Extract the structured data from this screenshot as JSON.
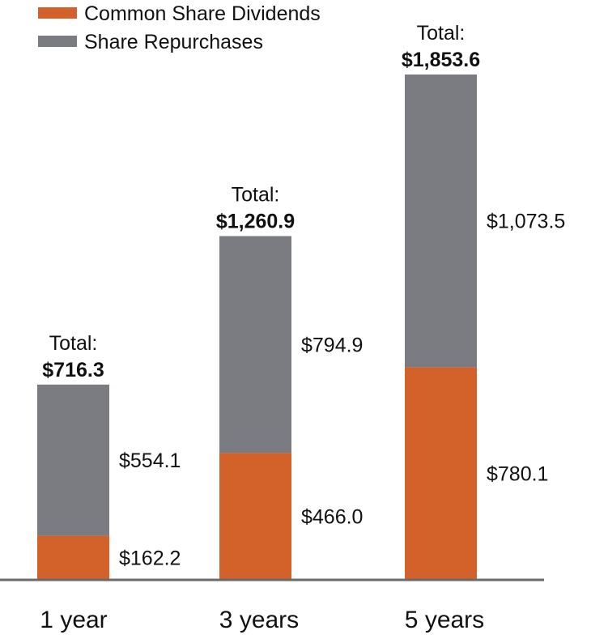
{
  "chart_data": {
    "type": "bar",
    "stacked": true,
    "categories": [
      "1 year",
      "3 years",
      "5 years"
    ],
    "series": [
      {
        "name": "Common Share Dividends",
        "color": "#D2612A",
        "values": [
          162.2,
          466.0,
          780.1
        ],
        "labels": [
          "$162.2",
          "$466.0",
          "$780.1"
        ]
      },
      {
        "name": "Share Repurchases",
        "color": "#7A7C82",
        "values": [
          554.1,
          794.9,
          1073.5
        ],
        "labels": [
          "$554.1",
          "$794.9",
          "$1,073.5"
        ]
      }
    ],
    "totals": {
      "caption": "Total:",
      "values": [
        716.3,
        1260.9,
        1853.6
      ],
      "labels": [
        "$716.3",
        "$1,260.9",
        "$1,853.6"
      ]
    },
    "legend_position": "top-left",
    "grid": false,
    "ylim": [
      0,
      1853.6
    ]
  }
}
